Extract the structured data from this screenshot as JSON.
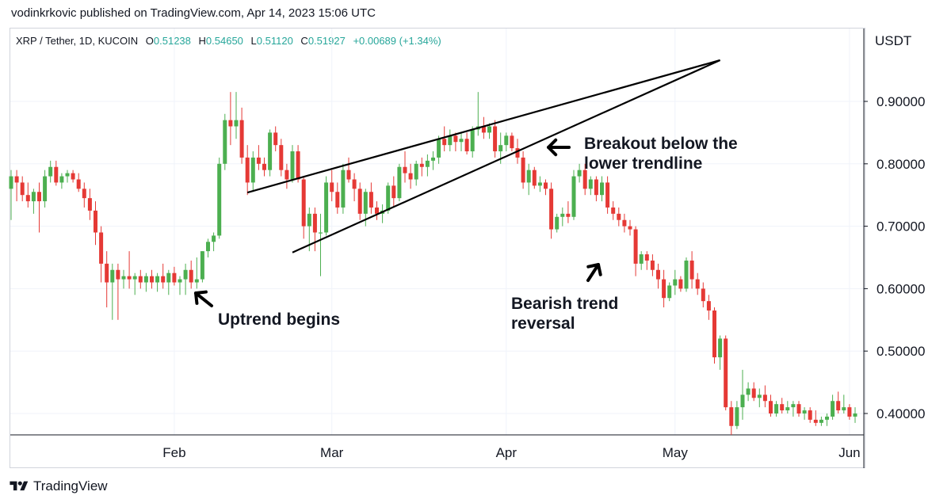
{
  "header": {
    "text": "vodinkrkovic published on TradingView.com, Apr 14, 2023 15:06 UTC"
  },
  "legend": {
    "symbol": "XRP / Tether, 1D, KUCOIN",
    "o_label": "O",
    "o": "0.51238",
    "h_label": "H",
    "h": "0.54650",
    "l_label": "L",
    "l": "0.51120",
    "c_label": "C",
    "c": "0.51927",
    "change": "+0.00689 (+1.34%)"
  },
  "footer": {
    "brand": "TradingView"
  },
  "colors": {
    "up": "#26a69a",
    "up_body": "#4caf50",
    "down": "#e53935",
    "grid": "#f0f3fa",
    "line": "#000000"
  },
  "chart_data": {
    "type": "candlestick",
    "title": "",
    "unit": "USDT",
    "x_ticks": [
      "Feb",
      "Mar",
      "Apr",
      "May",
      "Jun"
    ],
    "x_tick_days": [
      30,
      58,
      89,
      119,
      150
    ],
    "y_ticks": [
      "0.90000",
      "0.80000",
      "0.70000",
      "0.60000",
      "0.50000",
      "0.40000"
    ],
    "y_tick_values": [
      0.9,
      0.8,
      0.7,
      0.6,
      0.5,
      0.4
    ],
    "ylim": [
      0.365,
      0.91
    ],
    "xlim_days": [
      1,
      155
    ],
    "grid": true,
    "annotations": [
      {
        "lines": [
          "Uptrend begins"
        ]
      },
      {
        "lines": [
          "Breakout below the",
          "lower trendline"
        ]
      },
      {
        "lines": [
          "Bearish trend",
          "reversal"
        ]
      }
    ],
    "candles": [
      {
        "o": 0.76,
        "h": 0.79,
        "l": 0.71,
        "c": 0.78
      },
      {
        "o": 0.78,
        "h": 0.79,
        "l": 0.74,
        "c": 0.77
      },
      {
        "o": 0.77,
        "h": 0.78,
        "l": 0.74,
        "c": 0.75
      },
      {
        "o": 0.75,
        "h": 0.77,
        "l": 0.73,
        "c": 0.74
      },
      {
        "o": 0.74,
        "h": 0.76,
        "l": 0.72,
        "c": 0.755
      },
      {
        "o": 0.755,
        "h": 0.77,
        "l": 0.69,
        "c": 0.74
      },
      {
        "o": 0.74,
        "h": 0.79,
        "l": 0.73,
        "c": 0.78
      },
      {
        "o": 0.78,
        "h": 0.805,
        "l": 0.77,
        "c": 0.795
      },
      {
        "o": 0.795,
        "h": 0.805,
        "l": 0.765,
        "c": 0.77
      },
      {
        "o": 0.77,
        "h": 0.785,
        "l": 0.76,
        "c": 0.78
      },
      {
        "o": 0.78,
        "h": 0.79,
        "l": 0.77,
        "c": 0.785
      },
      {
        "o": 0.785,
        "h": 0.79,
        "l": 0.77,
        "c": 0.775
      },
      {
        "o": 0.775,
        "h": 0.785,
        "l": 0.755,
        "c": 0.76
      },
      {
        "o": 0.76,
        "h": 0.77,
        "l": 0.73,
        "c": 0.745
      },
      {
        "o": 0.745,
        "h": 0.76,
        "l": 0.71,
        "c": 0.725
      },
      {
        "o": 0.725,
        "h": 0.74,
        "l": 0.67,
        "c": 0.69
      },
      {
        "o": 0.69,
        "h": 0.7,
        "l": 0.61,
        "c": 0.64
      },
      {
        "o": 0.64,
        "h": 0.66,
        "l": 0.57,
        "c": 0.61
      },
      {
        "o": 0.61,
        "h": 0.64,
        "l": 0.55,
        "c": 0.63
      },
      {
        "o": 0.63,
        "h": 0.64,
        "l": 0.55,
        "c": 0.615
      },
      {
        "o": 0.615,
        "h": 0.63,
        "l": 0.6,
        "c": 0.62
      },
      {
        "o": 0.62,
        "h": 0.66,
        "l": 0.6,
        "c": 0.615
      },
      {
        "o": 0.615,
        "h": 0.625,
        "l": 0.59,
        "c": 0.62
      },
      {
        "o": 0.62,
        "h": 0.63,
        "l": 0.6,
        "c": 0.61
      },
      {
        "o": 0.61,
        "h": 0.625,
        "l": 0.595,
        "c": 0.62
      },
      {
        "o": 0.62,
        "h": 0.63,
        "l": 0.6,
        "c": 0.61
      },
      {
        "o": 0.61,
        "h": 0.625,
        "l": 0.595,
        "c": 0.62
      },
      {
        "o": 0.62,
        "h": 0.64,
        "l": 0.6,
        "c": 0.61
      },
      {
        "o": 0.61,
        "h": 0.63,
        "l": 0.59,
        "c": 0.625
      },
      {
        "o": 0.625,
        "h": 0.635,
        "l": 0.605,
        "c": 0.61
      },
      {
        "o": 0.61,
        "h": 0.62,
        "l": 0.59,
        "c": 0.615
      },
      {
        "o": 0.615,
        "h": 0.64,
        "l": 0.59,
        "c": 0.63
      },
      {
        "o": 0.63,
        "h": 0.645,
        "l": 0.6,
        "c": 0.61
      },
      {
        "o": 0.61,
        "h": 0.65,
        "l": 0.6,
        "c": 0.615
      },
      {
        "o": 0.615,
        "h": 0.66,
        "l": 0.61,
        "c": 0.66
      },
      {
        "o": 0.66,
        "h": 0.68,
        "l": 0.65,
        "c": 0.675
      },
      {
        "o": 0.675,
        "h": 0.69,
        "l": 0.66,
        "c": 0.685
      },
      {
        "o": 0.685,
        "h": 0.81,
        "l": 0.68,
        "c": 0.8
      },
      {
        "o": 0.8,
        "h": 0.88,
        "l": 0.79,
        "c": 0.87
      },
      {
        "o": 0.87,
        "h": 0.915,
        "l": 0.83,
        "c": 0.86
      },
      {
        "o": 0.86,
        "h": 0.915,
        "l": 0.84,
        "c": 0.87
      },
      {
        "o": 0.87,
        "h": 0.89,
        "l": 0.8,
        "c": 0.81
      },
      {
        "o": 0.81,
        "h": 0.83,
        "l": 0.75,
        "c": 0.77
      },
      {
        "o": 0.77,
        "h": 0.82,
        "l": 0.755,
        "c": 0.81
      },
      {
        "o": 0.81,
        "h": 0.83,
        "l": 0.79,
        "c": 0.8
      },
      {
        "o": 0.8,
        "h": 0.81,
        "l": 0.78,
        "c": 0.79
      },
      {
        "o": 0.79,
        "h": 0.855,
        "l": 0.78,
        "c": 0.85
      },
      {
        "o": 0.85,
        "h": 0.86,
        "l": 0.82,
        "c": 0.83
      },
      {
        "o": 0.83,
        "h": 0.84,
        "l": 0.78,
        "c": 0.79
      },
      {
        "o": 0.79,
        "h": 0.8,
        "l": 0.76,
        "c": 0.775
      },
      {
        "o": 0.775,
        "h": 0.83,
        "l": 0.77,
        "c": 0.82
      },
      {
        "o": 0.82,
        "h": 0.83,
        "l": 0.77,
        "c": 0.775
      },
      {
        "o": 0.775,
        "h": 0.78,
        "l": 0.68,
        "c": 0.7
      },
      {
        "o": 0.7,
        "h": 0.73,
        "l": 0.66,
        "c": 0.72
      },
      {
        "o": 0.72,
        "h": 0.73,
        "l": 0.66,
        "c": 0.69
      },
      {
        "o": 0.69,
        "h": 0.72,
        "l": 0.62,
        "c": 0.69
      },
      {
        "o": 0.69,
        "h": 0.78,
        "l": 0.685,
        "c": 0.77
      },
      {
        "o": 0.77,
        "h": 0.79,
        "l": 0.74,
        "c": 0.755
      },
      {
        "o": 0.755,
        "h": 0.77,
        "l": 0.72,
        "c": 0.73
      },
      {
        "o": 0.73,
        "h": 0.8,
        "l": 0.72,
        "c": 0.79
      },
      {
        "o": 0.79,
        "h": 0.81,
        "l": 0.77,
        "c": 0.775
      },
      {
        "o": 0.775,
        "h": 0.785,
        "l": 0.74,
        "c": 0.76
      },
      {
        "o": 0.76,
        "h": 0.77,
        "l": 0.71,
        "c": 0.72
      },
      {
        "o": 0.72,
        "h": 0.76,
        "l": 0.7,
        "c": 0.755
      },
      {
        "o": 0.755,
        "h": 0.77,
        "l": 0.72,
        "c": 0.73
      },
      {
        "o": 0.73,
        "h": 0.74,
        "l": 0.71,
        "c": 0.72
      },
      {
        "o": 0.72,
        "h": 0.735,
        "l": 0.705,
        "c": 0.725
      },
      {
        "o": 0.725,
        "h": 0.77,
        "l": 0.72,
        "c": 0.765
      },
      {
        "o": 0.765,
        "h": 0.78,
        "l": 0.73,
        "c": 0.745
      },
      {
        "o": 0.745,
        "h": 0.8,
        "l": 0.74,
        "c": 0.795
      },
      {
        "o": 0.795,
        "h": 0.82,
        "l": 0.77,
        "c": 0.785
      },
      {
        "o": 0.785,
        "h": 0.8,
        "l": 0.76,
        "c": 0.775
      },
      {
        "o": 0.775,
        "h": 0.805,
        "l": 0.765,
        "c": 0.8
      },
      {
        "o": 0.8,
        "h": 0.81,
        "l": 0.78,
        "c": 0.795
      },
      {
        "o": 0.795,
        "h": 0.815,
        "l": 0.78,
        "c": 0.805
      },
      {
        "o": 0.805,
        "h": 0.82,
        "l": 0.79,
        "c": 0.81
      },
      {
        "o": 0.81,
        "h": 0.845,
        "l": 0.8,
        "c": 0.84
      },
      {
        "o": 0.84,
        "h": 0.86,
        "l": 0.82,
        "c": 0.83
      },
      {
        "o": 0.83,
        "h": 0.855,
        "l": 0.82,
        "c": 0.845
      },
      {
        "o": 0.845,
        "h": 0.85,
        "l": 0.82,
        "c": 0.835
      },
      {
        "o": 0.835,
        "h": 0.85,
        "l": 0.82,
        "c": 0.84
      },
      {
        "o": 0.84,
        "h": 0.85,
        "l": 0.815,
        "c": 0.82
      },
      {
        "o": 0.82,
        "h": 0.86,
        "l": 0.81,
        "c": 0.855
      },
      {
        "o": 0.855,
        "h": 0.915,
        "l": 0.845,
        "c": 0.86
      },
      {
        "o": 0.86,
        "h": 0.875,
        "l": 0.84,
        "c": 0.85
      },
      {
        "o": 0.85,
        "h": 0.865,
        "l": 0.84,
        "c": 0.86
      },
      {
        "o": 0.86,
        "h": 0.87,
        "l": 0.81,
        "c": 0.82
      },
      {
        "o": 0.82,
        "h": 0.85,
        "l": 0.8,
        "c": 0.83
      },
      {
        "o": 0.83,
        "h": 0.85,
        "l": 0.82,
        "c": 0.845
      },
      {
        "o": 0.845,
        "h": 0.85,
        "l": 0.82,
        "c": 0.825
      },
      {
        "o": 0.825,
        "h": 0.84,
        "l": 0.8,
        "c": 0.81
      },
      {
        "o": 0.81,
        "h": 0.82,
        "l": 0.76,
        "c": 0.77
      },
      {
        "o": 0.77,
        "h": 0.8,
        "l": 0.75,
        "c": 0.79
      },
      {
        "o": 0.79,
        "h": 0.795,
        "l": 0.76,
        "c": 0.765
      },
      {
        "o": 0.765,
        "h": 0.78,
        "l": 0.755,
        "c": 0.77
      },
      {
        "o": 0.77,
        "h": 0.775,
        "l": 0.75,
        "c": 0.76
      },
      {
        "o": 0.76,
        "h": 0.77,
        "l": 0.68,
        "c": 0.695
      },
      {
        "o": 0.695,
        "h": 0.72,
        "l": 0.69,
        "c": 0.715
      },
      {
        "o": 0.715,
        "h": 0.73,
        "l": 0.7,
        "c": 0.72
      },
      {
        "o": 0.72,
        "h": 0.74,
        "l": 0.705,
        "c": 0.715
      },
      {
        "o": 0.715,
        "h": 0.79,
        "l": 0.71,
        "c": 0.78
      },
      {
        "o": 0.78,
        "h": 0.8,
        "l": 0.77,
        "c": 0.79
      },
      {
        "o": 0.79,
        "h": 0.8,
        "l": 0.75,
        "c": 0.76
      },
      {
        "o": 0.76,
        "h": 0.78,
        "l": 0.75,
        "c": 0.775
      },
      {
        "o": 0.775,
        "h": 0.78,
        "l": 0.74,
        "c": 0.75
      },
      {
        "o": 0.75,
        "h": 0.78,
        "l": 0.74,
        "c": 0.77
      },
      {
        "o": 0.77,
        "h": 0.78,
        "l": 0.72,
        "c": 0.73
      },
      {
        "o": 0.73,
        "h": 0.74,
        "l": 0.71,
        "c": 0.72
      },
      {
        "o": 0.72,
        "h": 0.73,
        "l": 0.7,
        "c": 0.71
      },
      {
        "o": 0.71,
        "h": 0.72,
        "l": 0.69,
        "c": 0.7
      },
      {
        "o": 0.7,
        "h": 0.71,
        "l": 0.685,
        "c": 0.695
      },
      {
        "o": 0.695,
        "h": 0.7,
        "l": 0.62,
        "c": 0.64
      },
      {
        "o": 0.64,
        "h": 0.66,
        "l": 0.63,
        "c": 0.655
      },
      {
        "o": 0.655,
        "h": 0.66,
        "l": 0.63,
        "c": 0.645
      },
      {
        "o": 0.645,
        "h": 0.655,
        "l": 0.62,
        "c": 0.63
      },
      {
        "o": 0.63,
        "h": 0.64,
        "l": 0.6,
        "c": 0.615
      },
      {
        "o": 0.615,
        "h": 0.63,
        "l": 0.57,
        "c": 0.585
      },
      {
        "o": 0.585,
        "h": 0.61,
        "l": 0.58,
        "c": 0.605
      },
      {
        "o": 0.605,
        "h": 0.63,
        "l": 0.59,
        "c": 0.615
      },
      {
        "o": 0.615,
        "h": 0.62,
        "l": 0.595,
        "c": 0.6
      },
      {
        "o": 0.6,
        "h": 0.65,
        "l": 0.595,
        "c": 0.645
      },
      {
        "o": 0.645,
        "h": 0.66,
        "l": 0.6,
        "c": 0.615
      },
      {
        "o": 0.615,
        "h": 0.625,
        "l": 0.59,
        "c": 0.6
      },
      {
        "o": 0.6,
        "h": 0.61,
        "l": 0.57,
        "c": 0.58
      },
      {
        "o": 0.58,
        "h": 0.59,
        "l": 0.55,
        "c": 0.565
      },
      {
        "o": 0.565,
        "h": 0.57,
        "l": 0.48,
        "c": 0.49
      },
      {
        "o": 0.49,
        "h": 0.525,
        "l": 0.47,
        "c": 0.52
      },
      {
        "o": 0.52,
        "h": 0.525,
        "l": 0.405,
        "c": 0.41
      },
      {
        "o": 0.41,
        "h": 0.42,
        "l": 0.36,
        "c": 0.38
      },
      {
        "o": 0.38,
        "h": 0.42,
        "l": 0.375,
        "c": 0.41
      },
      {
        "o": 0.41,
        "h": 0.47,
        "l": 0.39,
        "c": 0.43
      },
      {
        "o": 0.43,
        "h": 0.45,
        "l": 0.42,
        "c": 0.44
      },
      {
        "o": 0.44,
        "h": 0.45,
        "l": 0.42,
        "c": 0.425
      },
      {
        "o": 0.425,
        "h": 0.44,
        "l": 0.41,
        "c": 0.43
      },
      {
        "o": 0.43,
        "h": 0.445,
        "l": 0.41,
        "c": 0.42
      },
      {
        "o": 0.42,
        "h": 0.43,
        "l": 0.395,
        "c": 0.4
      },
      {
        "o": 0.4,
        "h": 0.42,
        "l": 0.395,
        "c": 0.415
      },
      {
        "o": 0.415,
        "h": 0.425,
        "l": 0.4,
        "c": 0.405
      },
      {
        "o": 0.405,
        "h": 0.42,
        "l": 0.4,
        "c": 0.41
      },
      {
        "o": 0.41,
        "h": 0.42,
        "l": 0.395,
        "c": 0.415
      },
      {
        "o": 0.415,
        "h": 0.42,
        "l": 0.395,
        "c": 0.4
      },
      {
        "o": 0.4,
        "h": 0.41,
        "l": 0.39,
        "c": 0.405
      },
      {
        "o": 0.405,
        "h": 0.41,
        "l": 0.385,
        "c": 0.39
      },
      {
        "o": 0.39,
        "h": 0.405,
        "l": 0.38,
        "c": 0.385
      },
      {
        "o": 0.385,
        "h": 0.395,
        "l": 0.38,
        "c": 0.39
      },
      {
        "o": 0.39,
        "h": 0.4,
        "l": 0.38,
        "c": 0.395
      },
      {
        "o": 0.395,
        "h": 0.43,
        "l": 0.39,
        "c": 0.42
      },
      {
        "o": 0.42,
        "h": 0.435,
        "l": 0.4,
        "c": 0.405
      },
      {
        "o": 0.405,
        "h": 0.43,
        "l": 0.4,
        "c": 0.41
      },
      {
        "o": 0.41,
        "h": 0.415,
        "l": 0.39,
        "c": 0.395
      },
      {
        "o": 0.395,
        "h": 0.41,
        "l": 0.385,
        "c": 0.4
      },
      {
        "o": 0.4,
        "h": 0.405,
        "l": 0.39,
        "c": 0.398
      }
    ],
    "trendlines": [
      {
        "name": "upper-trendline",
        "from": {
          "day": 43,
          "price": 0.754
        },
        "to": {
          "day": 127,
          "price": 0.966
        }
      },
      {
        "name": "lower-trendline",
        "from": {
          "day": 51,
          "price": 0.658
        },
        "to": {
          "day": 127,
          "price": 0.966
        }
      }
    ]
  }
}
